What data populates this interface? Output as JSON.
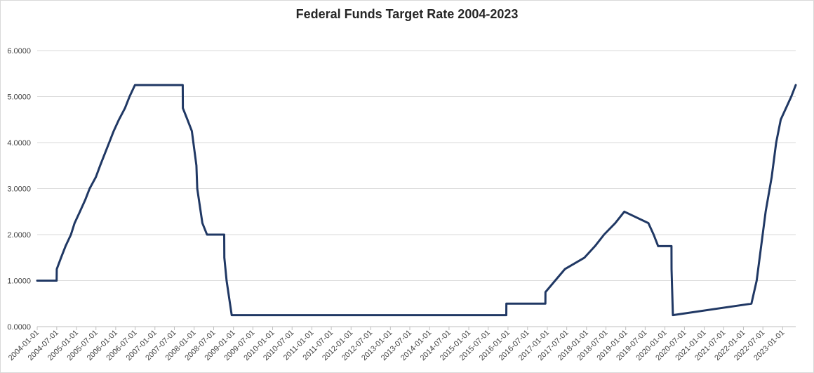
{
  "chart_data": {
    "type": "line",
    "title": "Federal Funds Target Rate 2004-2023",
    "xlabel": "",
    "ylabel": "",
    "ylim": [
      0,
      6
    ],
    "grid": true,
    "legend": "none",
    "line_color": "#203864",
    "y_tick_labels": [
      "0.0000",
      "1.0000",
      "2.0000",
      "3.0000",
      "4.0000",
      "5.0000",
      "6.0000"
    ],
    "x_tick_labels": [
      "2004-01-01",
      "2004-07-01",
      "2005-01-01",
      "2005-07-01",
      "2006-01-01",
      "2006-07-01",
      "2007-01-01",
      "2007-07-01",
      "2008-01-01",
      "2008-07-01",
      "2009-01-01",
      "2009-07-01",
      "2010-01-01",
      "2010-07-01",
      "2011-01-01",
      "2011-07-01",
      "2012-01-01",
      "2012-07-01",
      "2013-01-01",
      "2013-07-01",
      "2014-01-01",
      "2014-07-01",
      "2015-01-01",
      "2015-07-01",
      "2016-01-01",
      "2016-07-01",
      "2017-01-01",
      "2017-07-01",
      "2018-01-01",
      "2018-07-01",
      "2019-01-01",
      "2019-07-01",
      "2020-01-01",
      "2020-07-01",
      "2021-01-01",
      "2021-07-01",
      "2022-01-01",
      "2022-07-01",
      "2023-01-01"
    ],
    "series": [
      {
        "points": [
          [
            "2004-01-01",
            1.0
          ],
          [
            "2004-06-30",
            1.0
          ],
          [
            "2004-07-01",
            1.25
          ],
          [
            "2004-08-10",
            1.5
          ],
          [
            "2004-09-21",
            1.75
          ],
          [
            "2004-11-10",
            2.0
          ],
          [
            "2004-12-14",
            2.25
          ],
          [
            "2005-02-02",
            2.5
          ],
          [
            "2005-03-22",
            2.75
          ],
          [
            "2005-05-03",
            3.0
          ],
          [
            "2005-06-30",
            3.25
          ],
          [
            "2005-08-09",
            3.5
          ],
          [
            "2005-09-20",
            3.75
          ],
          [
            "2005-11-01",
            4.0
          ],
          [
            "2005-12-13",
            4.25
          ],
          [
            "2006-01-31",
            4.5
          ],
          [
            "2006-03-28",
            4.75
          ],
          [
            "2006-05-10",
            5.0
          ],
          [
            "2006-06-29",
            5.25
          ],
          [
            "2007-09-17",
            5.25
          ],
          [
            "2007-09-18",
            4.75
          ],
          [
            "2007-10-31",
            4.5
          ],
          [
            "2007-12-11",
            4.25
          ],
          [
            "2008-01-22",
            3.5
          ],
          [
            "2008-01-30",
            3.0
          ],
          [
            "2008-03-18",
            2.25
          ],
          [
            "2008-04-30",
            2.0
          ],
          [
            "2008-10-07",
            2.0
          ],
          [
            "2008-10-08",
            1.5
          ],
          [
            "2008-10-29",
            1.0
          ],
          [
            "2008-12-16",
            0.25
          ],
          [
            "2015-12-16",
            0.25
          ],
          [
            "2015-12-17",
            0.5
          ],
          [
            "2016-12-14",
            0.5
          ],
          [
            "2016-12-15",
            0.75
          ],
          [
            "2017-03-15",
            1.0
          ],
          [
            "2017-06-14",
            1.25
          ],
          [
            "2017-12-13",
            1.5
          ],
          [
            "2018-03-21",
            1.75
          ],
          [
            "2018-06-13",
            2.0
          ],
          [
            "2018-09-26",
            2.25
          ],
          [
            "2018-12-19",
            2.5
          ],
          [
            "2019-07-31",
            2.25
          ],
          [
            "2019-09-18",
            2.0
          ],
          [
            "2019-10-30",
            1.75
          ],
          [
            "2020-03-02",
            1.75
          ],
          [
            "2020-03-03",
            1.25
          ],
          [
            "2020-03-15",
            0.25
          ],
          [
            "2022-03-16",
            0.5
          ],
          [
            "2022-05-04",
            1.0
          ],
          [
            "2022-06-15",
            1.75
          ],
          [
            "2022-07-27",
            2.5
          ],
          [
            "2022-09-21",
            3.25
          ],
          [
            "2022-11-02",
            4.0
          ],
          [
            "2022-12-14",
            4.5
          ],
          [
            "2023-02-01",
            4.75
          ],
          [
            "2023-03-22",
            5.0
          ],
          [
            "2023-05-03",
            5.25
          ]
        ]
      }
    ]
  }
}
